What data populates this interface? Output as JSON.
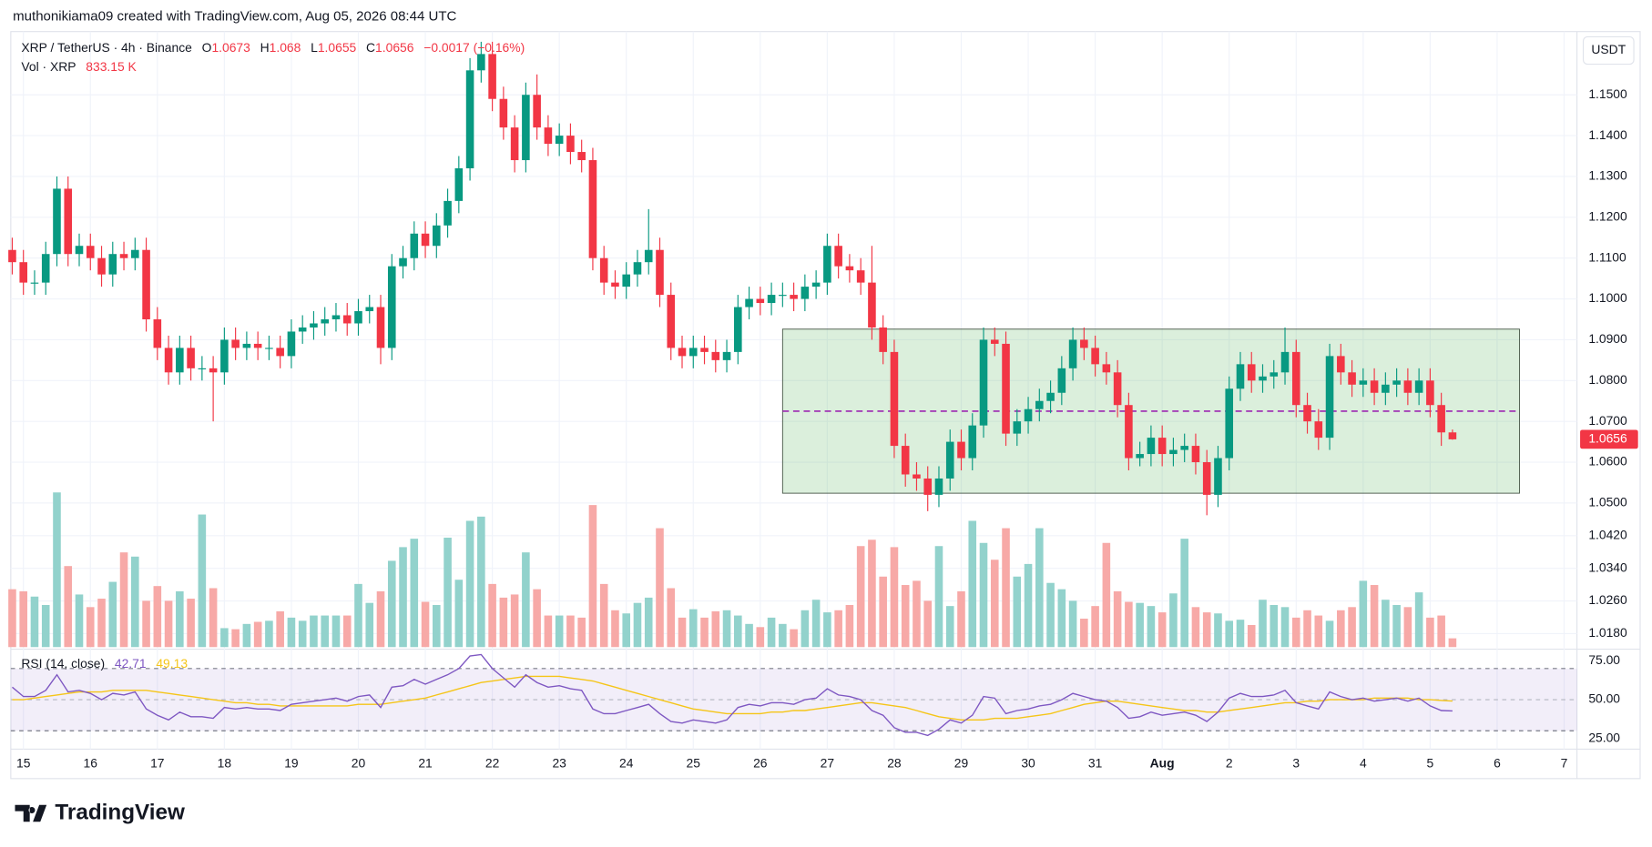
{
  "chart_data": {
    "type": "candlestick",
    "attribution": "muthonikiama09 created with TradingView.com, Aug 05, 2026 08:44 UTC",
    "title": "XRP / TetherUS · 4h · Binance",
    "ohlc_letters": [
      "O",
      "H",
      "L",
      "C"
    ],
    "change_label": "−0.0017 (−0.16%)",
    "currency": "USDT",
    "volume_title": "Vol · XRP",
    "volume_label": "833.15 K",
    "rsi_title": "RSI (14, close)",
    "brand": "TradingView",
    "up_color": "#089981",
    "down_color": "#f23645",
    "volume_up_color": "#92d2cc",
    "volume_down_color": "#f7a9a7",
    "candles": [
      [
        1.112,
        1.115,
        1.106,
        1.109
      ],
      [
        1.109,
        1.112,
        1.101,
        1.104
      ],
      [
        1.104,
        1.107,
        1.101,
        1.104
      ],
      [
        1.104,
        1.114,
        1.101,
        1.111
      ],
      [
        1.111,
        1.13,
        1.108,
        1.127
      ],
      [
        1.127,
        1.13,
        1.108,
        1.111
      ],
      [
        1.111,
        1.116,
        1.108,
        1.113
      ],
      [
        1.113,
        1.116,
        1.107,
        1.11
      ],
      [
        1.11,
        1.113,
        1.103,
        1.106
      ],
      [
        1.106,
        1.114,
        1.103,
        1.111
      ],
      [
        1.111,
        1.114,
        1.107,
        1.11
      ],
      [
        1.11,
        1.115,
        1.107,
        1.112
      ],
      [
        1.112,
        1.115,
        1.092,
        1.095
      ],
      [
        1.095,
        1.098,
        1.085,
        1.088
      ],
      [
        1.088,
        1.091,
        1.079,
        1.082
      ],
      [
        1.082,
        1.091,
        1.079,
        1.088
      ],
      [
        1.088,
        1.091,
        1.08,
        1.083
      ],
      [
        1.083,
        1.086,
        1.08,
        1.083
      ],
      [
        1.083,
        1.086,
        1.07,
        1.082
      ],
      [
        1.082,
        1.093,
        1.079,
        1.09
      ],
      [
        1.09,
        1.093,
        1.085,
        1.088
      ],
      [
        1.088,
        1.092,
        1.085,
        1.089
      ],
      [
        1.089,
        1.092,
        1.085,
        1.088
      ],
      [
        1.088,
        1.091,
        1.085,
        1.088
      ],
      [
        1.088,
        1.091,
        1.083,
        1.086
      ],
      [
        1.086,
        1.095,
        1.083,
        1.092
      ],
      [
        1.092,
        1.096,
        1.089,
        1.093
      ],
      [
        1.093,
        1.097,
        1.09,
        1.094
      ],
      [
        1.094,
        1.098,
        1.091,
        1.095
      ],
      [
        1.095,
        1.099,
        1.092,
        1.096
      ],
      [
        1.096,
        1.099,
        1.091,
        1.094
      ],
      [
        1.094,
        1.1,
        1.091,
        1.097
      ],
      [
        1.097,
        1.101,
        1.094,
        1.098
      ],
      [
        1.098,
        1.101,
        1.084,
        1.088
      ],
      [
        1.088,
        1.111,
        1.085,
        1.108
      ],
      [
        1.108,
        1.113,
        1.105,
        1.11
      ],
      [
        1.11,
        1.119,
        1.107,
        1.116
      ],
      [
        1.116,
        1.119,
        1.11,
        1.113
      ],
      [
        1.113,
        1.121,
        1.11,
        1.118
      ],
      [
        1.118,
        1.127,
        1.115,
        1.124
      ],
      [
        1.124,
        1.135,
        1.121,
        1.132
      ],
      [
        1.132,
        1.159,
        1.129,
        1.156
      ],
      [
        1.156,
        1.163,
        1.153,
        1.16
      ],
      [
        1.16,
        1.163,
        1.146,
        1.149
      ],
      [
        1.149,
        1.152,
        1.139,
        1.142
      ],
      [
        1.142,
        1.145,
        1.131,
        1.134
      ],
      [
        1.134,
        1.153,
        1.131,
        1.15
      ],
      [
        1.15,
        1.155,
        1.139,
        1.142
      ],
      [
        1.142,
        1.145,
        1.135,
        1.138
      ],
      [
        1.138,
        1.143,
        1.135,
        1.14
      ],
      [
        1.14,
        1.143,
        1.133,
        1.136
      ],
      [
        1.136,
        1.139,
        1.131,
        1.134
      ],
      [
        1.134,
        1.137,
        1.107,
        1.11
      ],
      [
        1.11,
        1.113,
        1.101,
        1.104
      ],
      [
        1.104,
        1.107,
        1.1,
        1.103
      ],
      [
        1.103,
        1.109,
        1.1,
        1.106
      ],
      [
        1.106,
        1.112,
        1.103,
        1.109
      ],
      [
        1.109,
        1.122,
        1.106,
        1.112
      ],
      [
        1.112,
        1.115,
        1.098,
        1.101
      ],
      [
        1.101,
        1.104,
        1.085,
        1.088
      ],
      [
        1.088,
        1.091,
        1.083,
        1.086
      ],
      [
        1.086,
        1.091,
        1.083,
        1.088
      ],
      [
        1.088,
        1.091,
        1.084,
        1.087
      ],
      [
        1.087,
        1.09,
        1.082,
        1.085
      ],
      [
        1.085,
        1.09,
        1.082,
        1.087
      ],
      [
        1.087,
        1.101,
        1.084,
        1.098
      ],
      [
        1.098,
        1.103,
        1.095,
        1.1
      ],
      [
        1.1,
        1.103,
        1.096,
        1.099
      ],
      [
        1.099,
        1.104,
        1.096,
        1.101
      ],
      [
        1.101,
        1.104,
        1.098,
        1.101
      ],
      [
        1.101,
        1.104,
        1.097,
        1.1
      ],
      [
        1.1,
        1.106,
        1.097,
        1.103
      ],
      [
        1.103,
        1.107,
        1.1,
        1.104
      ],
      [
        1.104,
        1.116,
        1.101,
        1.113
      ],
      [
        1.113,
        1.116,
        1.105,
        1.108
      ],
      [
        1.108,
        1.111,
        1.104,
        1.107
      ],
      [
        1.107,
        1.11,
        1.101,
        1.104
      ],
      [
        1.104,
        1.113,
        1.09,
        1.093
      ],
      [
        1.093,
        1.096,
        1.084,
        1.087
      ],
      [
        1.087,
        1.09,
        1.061,
        1.064
      ],
      [
        1.064,
        1.067,
        1.054,
        1.057
      ],
      [
        1.057,
        1.06,
        1.053,
        1.056
      ],
      [
        1.056,
        1.059,
        1.048,
        1.052
      ],
      [
        1.052,
        1.059,
        1.049,
        1.056
      ],
      [
        1.056,
        1.068,
        1.053,
        1.065
      ],
      [
        1.065,
        1.068,
        1.058,
        1.061
      ],
      [
        1.061,
        1.072,
        1.058,
        1.069
      ],
      [
        1.069,
        1.093,
        1.066,
        1.09
      ],
      [
        1.09,
        1.093,
        1.086,
        1.089
      ],
      [
        1.089,
        1.092,
        1.064,
        1.067
      ],
      [
        1.067,
        1.073,
        1.064,
        1.07
      ],
      [
        1.07,
        1.076,
        1.067,
        1.073
      ],
      [
        1.073,
        1.078,
        1.07,
        1.075
      ],
      [
        1.075,
        1.08,
        1.072,
        1.077
      ],
      [
        1.077,
        1.086,
        1.074,
        1.083
      ],
      [
        1.083,
        1.093,
        1.08,
        1.09
      ],
      [
        1.09,
        1.093,
        1.085,
        1.088
      ],
      [
        1.088,
        1.091,
        1.081,
        1.084
      ],
      [
        1.084,
        1.087,
        1.079,
        1.082
      ],
      [
        1.082,
        1.085,
        1.071,
        1.074
      ],
      [
        1.074,
        1.077,
        1.058,
        1.061
      ],
      [
        1.061,
        1.065,
        1.059,
        1.062
      ],
      [
        1.062,
        1.069,
        1.059,
        1.066
      ],
      [
        1.066,
        1.069,
        1.059,
        1.062
      ],
      [
        1.062,
        1.066,
        1.059,
        1.063
      ],
      [
        1.063,
        1.067,
        1.06,
        1.064
      ],
      [
        1.064,
        1.067,
        1.057,
        1.06
      ],
      [
        1.06,
        1.063,
        1.047,
        1.052
      ],
      [
        1.052,
        1.064,
        1.049,
        1.061
      ],
      [
        1.061,
        1.081,
        1.058,
        1.078
      ],
      [
        1.078,
        1.087,
        1.075,
        1.084
      ],
      [
        1.084,
        1.087,
        1.077,
        1.08
      ],
      [
        1.08,
        1.084,
        1.077,
        1.081
      ],
      [
        1.081,
        1.085,
        1.078,
        1.082
      ],
      [
        1.082,
        1.093,
        1.079,
        1.087
      ],
      [
        1.087,
        1.09,
        1.071,
        1.074
      ],
      [
        1.074,
        1.077,
        1.067,
        1.07
      ],
      [
        1.07,
        1.073,
        1.063,
        1.066
      ],
      [
        1.066,
        1.089,
        1.063,
        1.086
      ],
      [
        1.086,
        1.089,
        1.079,
        1.082
      ],
      [
        1.082,
        1.085,
        1.076,
        1.079
      ],
      [
        1.079,
        1.083,
        1.076,
        1.08
      ],
      [
        1.08,
        1.083,
        1.074,
        1.077
      ],
      [
        1.077,
        1.082,
        1.074,
        1.079
      ],
      [
        1.079,
        1.083,
        1.076,
        1.08
      ],
      [
        1.08,
        1.083,
        1.074,
        1.077
      ],
      [
        1.077,
        1.083,
        1.074,
        1.08
      ],
      [
        1.08,
        1.083,
        1.071,
        1.074
      ],
      [
        1.074,
        1.077,
        1.064,
        1.0673
      ],
      [
        1.0673,
        1.068,
        1.0655,
        1.0656
      ]
    ],
    "volume": [
      5500,
      5300,
      4800,
      4000,
      14700,
      7700,
      5000,
      3800,
      4600,
      6200,
      9000,
      8600,
      4400,
      5800,
      4400,
      5300,
      4600,
      12600,
      5600,
      1800,
      1700,
      2200,
      2400,
      2500,
      3400,
      2800,
      2500,
      3000,
      3000,
      3000,
      3000,
      6000,
      4200,
      5300,
      8200,
      9500,
      10300,
      4300,
      4000,
      10400,
      6400,
      12000,
      12400,
      6000,
      4700,
      5000,
      9000,
      5500,
      3000,
      3000,
      3000,
      2800,
      13500,
      6000,
      3500,
      3200,
      4200,
      4700,
      11300,
      5600,
      2800,
      3600,
      2800,
      3400,
      3500,
      3000,
      2200,
      1900,
      2800,
      2200,
      1700,
      3500,
      4500,
      3300,
      3500,
      4000,
      9600,
      10200,
      6700,
      9500,
      5900,
      6300,
      4400,
      9600,
      3900,
      5300,
      12000,
      9900,
      8300,
      11300,
      6700,
      7900,
      11300,
      6100,
      5500,
      4400,
      2700,
      3900,
      9900,
      5300,
      4300,
      4200,
      3900,
      3300,
      5100,
      10300,
      3800,
      3300,
      3200,
      2500,
      2600,
      2100,
      4500,
      4000,
      3800,
      2800,
      3500,
      3000,
      2500,
      3500,
      3800,
      6300,
      5900,
      4500,
      4000,
      3800,
      5200,
      2800,
      3000,
      833.15
    ],
    "volume_ylim": [
      0,
      58500
    ],
    "rsi": [
      58,
      52,
      52,
      56,
      66,
      55,
      56,
      54,
      50,
      54,
      53,
      55,
      44,
      40,
      37,
      42,
      39,
      39,
      38,
      45,
      44,
      45,
      44,
      44,
      43,
      47,
      48,
      49,
      50,
      51,
      49,
      52,
      53,
      45,
      58,
      59,
      63,
      60,
      63,
      66,
      70,
      78,
      79,
      70,
      64,
      58,
      66,
      61,
      58,
      59,
      57,
      56,
      44,
      41,
      41,
      43,
      45,
      47,
      41,
      36,
      35,
      37,
      36,
      35,
      37,
      45,
      47,
      46,
      48,
      48,
      47,
      50,
      51,
      57,
      53,
      52,
      50,
      43,
      40,
      32,
      29,
      29,
      27,
      31,
      37,
      35,
      40,
      52,
      51,
      41,
      43,
      44,
      46,
      47,
      50,
      54,
      52,
      50,
      49,
      45,
      38,
      39,
      42,
      40,
      41,
      42,
      40,
      36,
      42,
      51,
      54,
      52,
      52,
      53,
      56,
      48,
      46,
      44,
      55,
      52,
      50,
      51,
      49,
      50,
      51,
      49,
      51,
      46,
      43,
      42.71
    ],
    "rsi_ma": [
      50,
      50,
      51,
      52,
      53,
      54,
      55,
      55,
      55,
      56,
      56,
      56,
      56,
      55,
      54,
      53,
      52,
      51,
      50,
      49,
      48,
      48,
      47,
      47,
      46,
      46,
      46,
      46,
      46,
      46,
      46,
      47,
      47,
      47,
      48,
      49,
      50,
      51,
      53,
      55,
      57,
      59,
      61,
      62,
      63,
      64,
      65,
      65,
      65,
      65,
      64,
      63,
      62,
      60,
      58,
      56,
      54,
      52,
      50,
      48,
      46,
      44,
      43,
      42,
      41,
      41,
      41,
      41,
      42,
      42,
      43,
      43,
      44,
      45,
      46,
      47,
      48,
      48,
      47,
      46,
      45,
      43,
      41,
      39,
      38,
      37,
      37,
      37,
      38,
      38,
      38,
      39,
      40,
      41,
      43,
      45,
      47,
      48,
      49,
      49,
      48,
      47,
      46,
      45,
      44,
      43,
      43,
      42,
      42,
      43,
      44,
      45,
      46,
      47,
      48,
      48,
      49,
      49,
      50,
      50,
      50,
      50,
      51,
      51,
      51,
      51,
      50,
      50,
      49.5,
      49.13
    ],
    "rsi_color": "#7e57c2",
    "rsi_ma_color": "#f5c518",
    "rsi_band": [
      30,
      70
    ],
    "rsi_ylim": [
      18.2,
      80.4
    ],
    "rsi_yticks": [
      {
        "value": 75,
        "label": "75.00"
      },
      {
        "value": 50,
        "label": "50.00"
      },
      {
        "value": 25,
        "label": "25.00"
      }
    ],
    "ylim": [
      1.0147,
      1.1655
    ],
    "yticks": [
      {
        "value": 1.15,
        "label": "1.1500"
      },
      {
        "value": 1.14,
        "label": "1.1400"
      },
      {
        "value": 1.13,
        "label": "1.1300"
      },
      {
        "value": 1.12,
        "label": "1.1200"
      },
      {
        "value": 1.11,
        "label": "1.1100"
      },
      {
        "value": 1.1,
        "label": "1.1000"
      },
      {
        "value": 1.09,
        "label": "1.0900"
      },
      {
        "value": 1.08,
        "label": "1.0800"
      },
      {
        "value": 1.07,
        "label": "1.0700"
      },
      {
        "value": 1.06,
        "label": "1.0600"
      },
      {
        "value": 1.05,
        "label": "1.0500"
      },
      {
        "value": 1.042,
        "label": "1.0420"
      },
      {
        "value": 1.034,
        "label": "1.0340"
      },
      {
        "value": 1.026,
        "label": "1.0260"
      },
      {
        "value": 1.018,
        "label": "1.0180"
      }
    ],
    "xlim": [
      -0.13,
      140.15
    ],
    "xticks": [
      {
        "value": 1,
        "label": "15"
      },
      {
        "value": 7,
        "label": "16"
      },
      {
        "value": 13,
        "label": "17"
      },
      {
        "value": 19,
        "label": "18"
      },
      {
        "value": 25,
        "label": "19"
      },
      {
        "value": 31,
        "label": "20"
      },
      {
        "value": 37,
        "label": "21"
      },
      {
        "value": 43,
        "label": "22"
      },
      {
        "value": 49,
        "label": "23"
      },
      {
        "value": 55,
        "label": "24"
      },
      {
        "value": 61,
        "label": "25"
      },
      {
        "value": 67,
        "label": "26"
      },
      {
        "value": 73,
        "label": "27"
      },
      {
        "value": 79,
        "label": "28"
      },
      {
        "value": 85,
        "label": "29"
      },
      {
        "value": 91,
        "label": "30"
      },
      {
        "value": 97,
        "label": "31"
      },
      {
        "value": 103,
        "label": "Aug"
      },
      {
        "value": 109,
        "label": "2"
      },
      {
        "value": 115,
        "label": "3"
      },
      {
        "value": 121,
        "label": "4"
      },
      {
        "value": 127,
        "label": "5"
      },
      {
        "value": 133,
        "label": "6"
      },
      {
        "value": 139,
        "label": "7"
      }
    ],
    "range_box": {
      "x": [
        69,
        135
      ],
      "y": [
        1.0524,
        1.0926
      ],
      "mid": 1.0725
    },
    "grid": true
  }
}
